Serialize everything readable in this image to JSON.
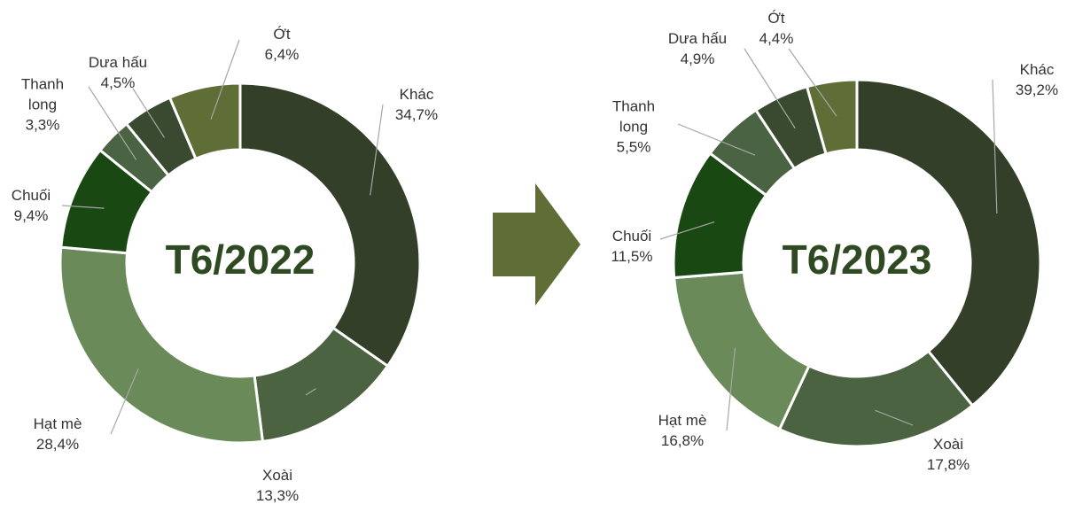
{
  "chart_data": [
    {
      "type": "donut",
      "title": "T6/2022",
      "categories": [
        "Khác",
        "Xoài",
        "Hạt mè",
        "Chuối",
        "Thanh long",
        "Dưa hấu",
        "Ớt"
      ],
      "values": [
        34.7,
        13.3,
        28.4,
        9.4,
        3.3,
        4.5,
        6.4
      ],
      "value_labels": [
        "34,7%",
        "13,3%",
        "28,4%",
        "9,4%",
        "3,3%",
        "4,5%",
        "6,4%"
      ],
      "colors": [
        "#333f28",
        "#4b6340",
        "#6a8a59",
        "#1a4812",
        "#4a6342",
        "#3a4a30",
        "#5f6e36"
      ]
    },
    {
      "type": "donut",
      "title": "T6/2023",
      "categories": [
        "Khác",
        "Xoài",
        "Hạt mè",
        "Chuối",
        "Thanh long",
        "Dưa hấu",
        "Ớt"
      ],
      "values": [
        39.2,
        17.8,
        16.8,
        11.5,
        5.5,
        4.9,
        4.4
      ],
      "value_labels": [
        "39,2%",
        "17,8%",
        "16,8%",
        "11,5%",
        "5,5%",
        "4,9%",
        "4,4%"
      ],
      "colors": [
        "#333f28",
        "#4b6340",
        "#6a8a59",
        "#1a4812",
        "#4a6342",
        "#3a4a30",
        "#5f6e36"
      ]
    }
  ]
}
